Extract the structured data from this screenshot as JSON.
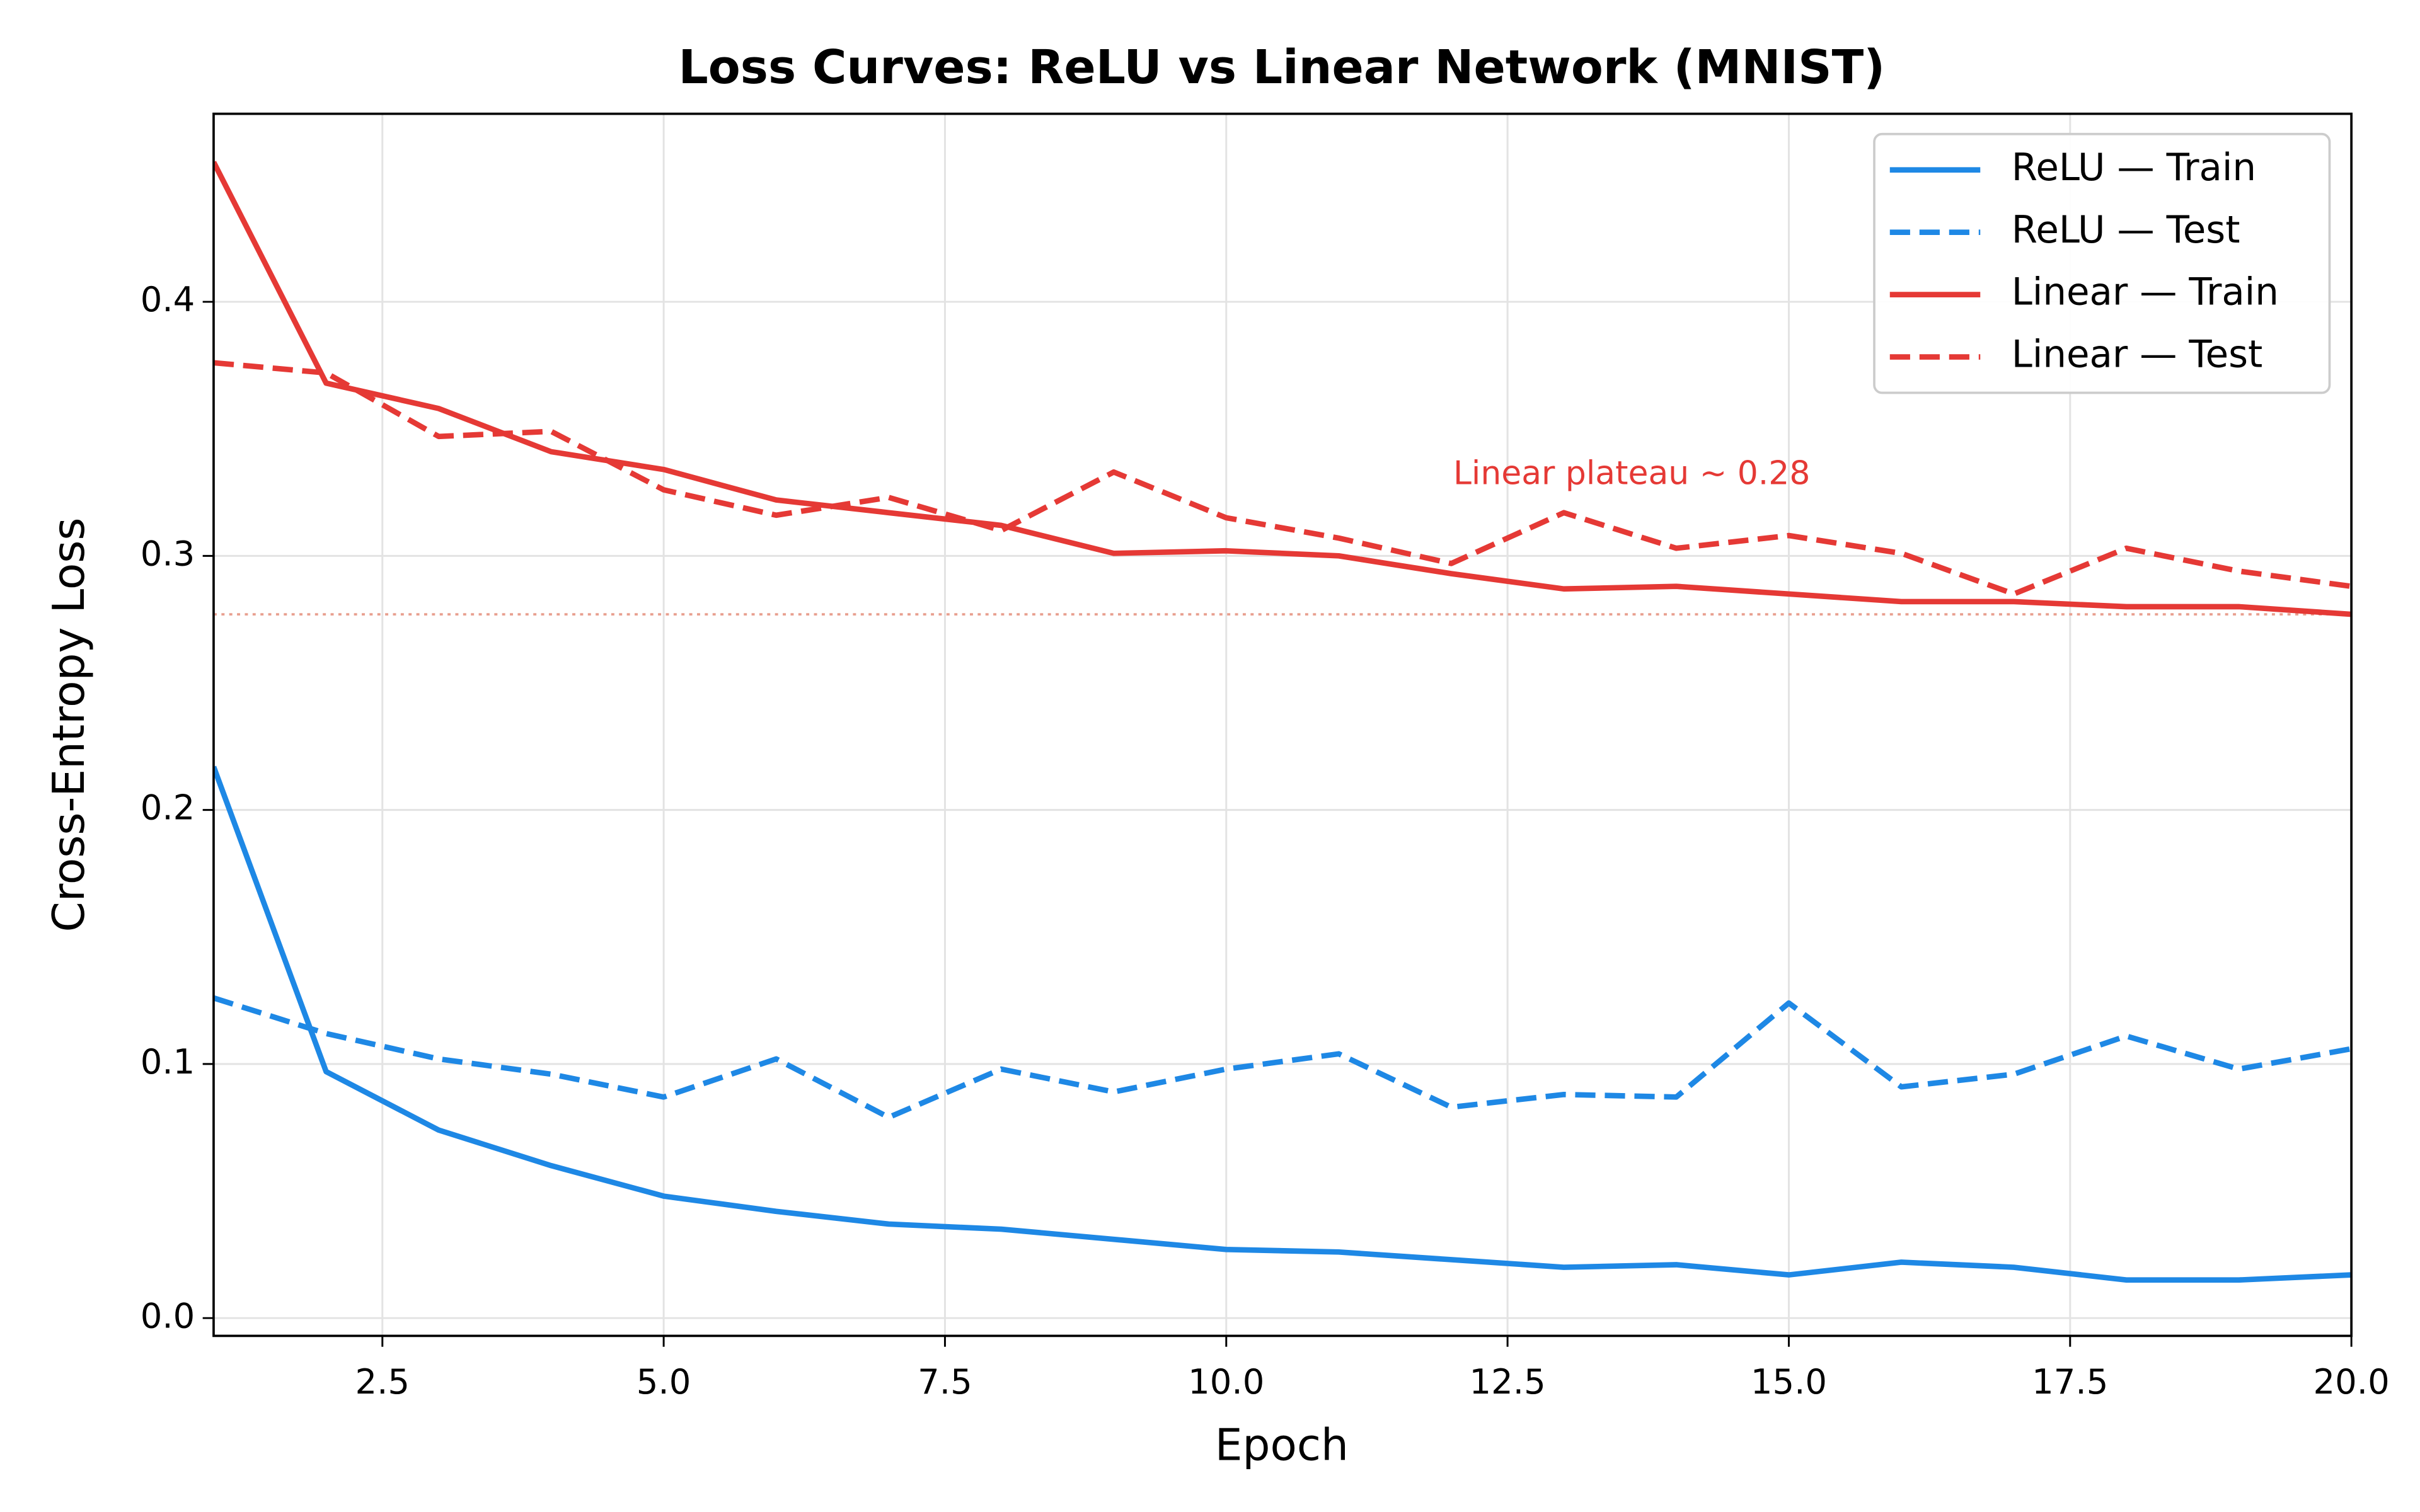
{
  "chart_data": {
    "type": "line",
    "title": "Loss Curves: ReLU vs Linear Network (MNIST)",
    "x_label": "Epoch",
    "y_label": "Cross-Entropy Loss",
    "x": [
      1,
      2,
      3,
      4,
      5,
      6,
      7,
      8,
      9,
      10,
      11,
      12,
      13,
      14,
      15,
      16,
      17,
      18,
      19,
      20
    ],
    "series": [
      {
        "name": "ReLU — Train",
        "color": "#1e88e5",
        "dashed": false,
        "values": [
          0.217,
          0.097,
          0.074,
          0.06,
          0.048,
          0.042,
          0.037,
          0.035,
          0.031,
          0.027,
          0.026,
          0.023,
          0.02,
          0.021,
          0.017,
          0.022,
          0.02,
          0.015,
          0.015,
          0.017
        ]
      },
      {
        "name": "ReLU — Test",
        "color": "#1e88e5",
        "dashed": true,
        "values": [
          0.126,
          0.112,
          0.102,
          0.096,
          0.087,
          0.102,
          0.079,
          0.098,
          0.089,
          0.098,
          0.104,
          0.083,
          0.088,
          0.087,
          0.124,
          0.091,
          0.096,
          0.111,
          0.098,
          0.106
        ]
      },
      {
        "name": "Linear — Train",
        "color": "#e53935",
        "dashed": false,
        "values": [
          0.455,
          0.368,
          0.358,
          0.341,
          0.334,
          0.322,
          0.317,
          0.312,
          0.301,
          0.302,
          0.3,
          0.293,
          0.287,
          0.288,
          0.285,
          0.282,
          0.282,
          0.28,
          0.28,
          0.277
        ]
      },
      {
        "name": "Linear — Test",
        "color": "#e53935",
        "dashed": true,
        "values": [
          0.376,
          0.372,
          0.347,
          0.349,
          0.326,
          0.316,
          0.323,
          0.31,
          0.333,
          0.315,
          0.307,
          0.297,
          0.317,
          0.303,
          0.308,
          0.301,
          0.285,
          0.303,
          0.294,
          0.288
        ]
      }
    ],
    "reference_line": {
      "value": 0.277,
      "color": "#e8a090"
    },
    "annotation": {
      "text": "Linear plateau ~ 0.28",
      "color": "#e53935"
    },
    "xlim": [
      1,
      20
    ],
    "ylim": [
      -0.007,
      0.474
    ],
    "xticks": [
      2.5,
      {
        "value": 5,
        "label": "5.0"
      },
      7.5,
      {
        "value": 10,
        "label": "10.0"
      },
      12.5,
      {
        "value": 15,
        "label": "15.0"
      },
      17.5,
      {
        "value": 20,
        "label": "20.0"
      }
    ],
    "yticks": [
      {
        "value": 0,
        "label": "0.0"
      },
      0.1,
      0.2,
      0.3,
      0.4
    ],
    "grid": true,
    "legend": "upper right"
  }
}
